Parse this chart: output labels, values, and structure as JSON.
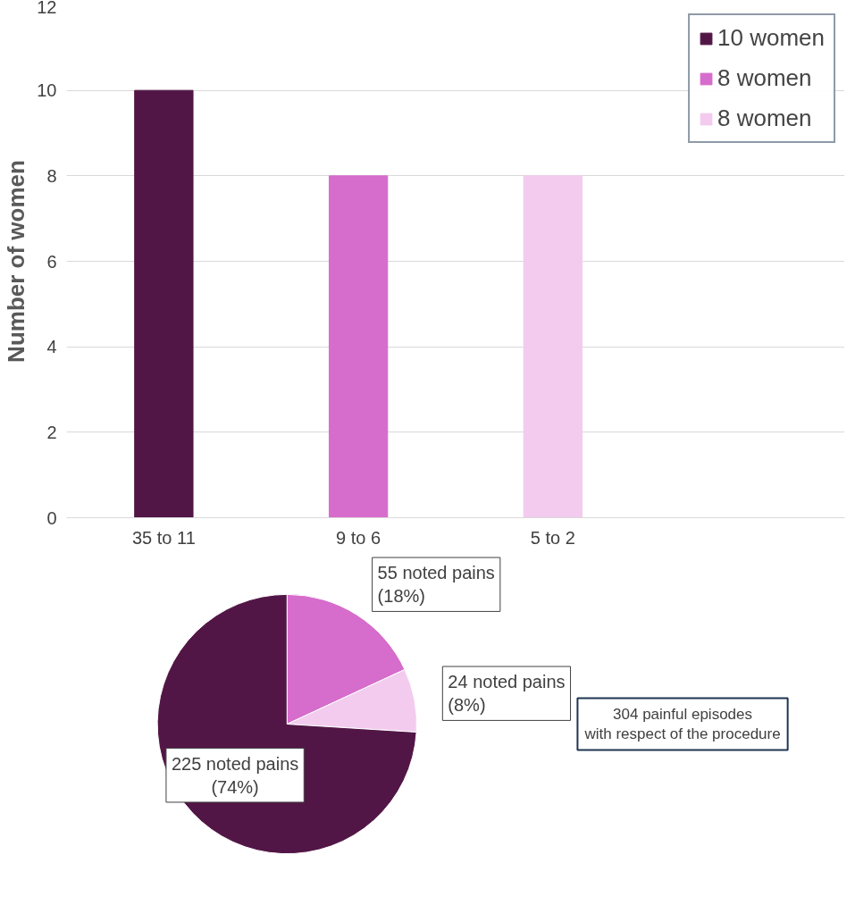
{
  "chart_data": [
    {
      "type": "bar",
      "ylabel": "Number of women",
      "categories": [
        "35 to 11",
        "9 to 6",
        "5 to 2"
      ],
      "series": [
        {
          "name": "10 women",
          "color": "#521646",
          "values": [
            10,
            null,
            null
          ]
        },
        {
          "name": "8 women",
          "color": "#d66ccb",
          "values": [
            null,
            8,
            null
          ]
        },
        {
          "name": "8 women",
          "color": "#f2cbee",
          "values": [
            null,
            null,
            8
          ]
        }
      ],
      "ylim": [
        0,
        12
      ],
      "yticks": [
        0,
        2,
        4,
        6,
        8,
        10,
        12
      ],
      "grid": "y",
      "legend": "top right"
    },
    {
      "type": "pie",
      "categories": [
        "55 noted pains\n(18%)",
        "24 noted pains\n(8%)",
        "225 noted pains\n(74%)"
      ],
      "values": [
        55,
        24,
        225
      ],
      "colors": [
        "#d66ccb",
        "#f2cbee",
        "#521646"
      ],
      "annotations": [
        "304 painful episodes\nwith respect of the procedure"
      ]
    }
  ]
}
